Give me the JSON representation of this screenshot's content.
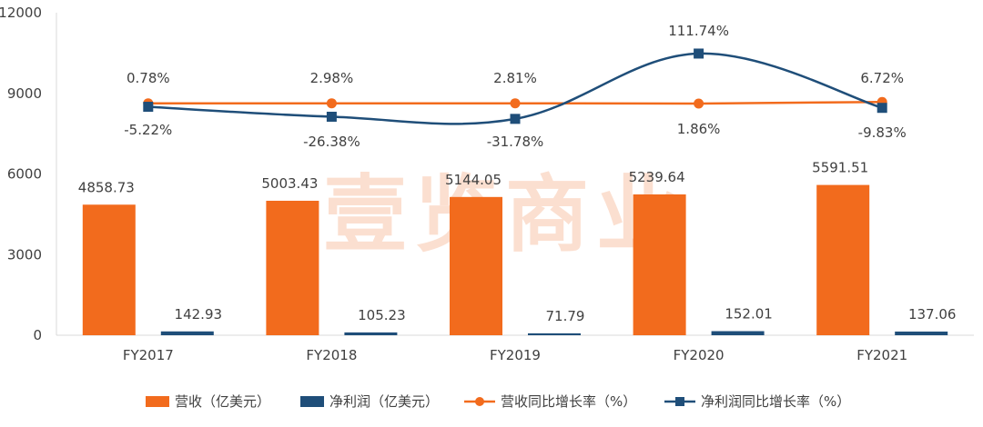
{
  "chart_data": {
    "type": "bar",
    "categories": [
      "FY2017",
      "FY2018",
      "FY2019",
      "FY2020",
      "FY2021"
    ],
    "ylim": [
      0,
      12000
    ],
    "yticks": [
      0,
      3000,
      6000,
      9000,
      12000
    ],
    "grid": false,
    "legend_position": "bottom",
    "bar_series": [
      {
        "name": "营收（亿美元）",
        "values": [
          4858.73,
          5003.43,
          5144.05,
          5239.64,
          5591.51
        ],
        "labels": [
          "4858.73",
          "5003.43",
          "5144.05",
          "5239.64",
          "5591.51"
        ],
        "color": "#F26B1D"
      },
      {
        "name": "净利润（亿美元）",
        "values": [
          142.93,
          105.23,
          71.79,
          152.01,
          137.06
        ],
        "labels": [
          "142.93",
          "105.23",
          "71.79",
          "152.01",
          "137.06"
        ],
        "color": "#1F4E79"
      }
    ],
    "line_series": [
      {
        "name": "营收同比增长率（%）",
        "values": [
          0.78,
          2.98,
          2.81,
          1.86,
          6.72
        ],
        "labels": [
          "0.78%",
          "2.98%",
          "2.81%",
          "1.86%",
          "6.72%"
        ],
        "plot_y": [
          8630,
          8630,
          8630,
          8620,
          8680
        ],
        "color": "#F26B1D",
        "smooth": false
      },
      {
        "name": "净利润同比增长率（%）",
        "values": [
          -5.22,
          -26.38,
          -31.78,
          111.74,
          -9.83
        ],
        "labels": [
          "-5.22%",
          "-26.38%",
          "-31.78%",
          "111.74%",
          "-9.83%"
        ],
        "plot_y": [
          8500,
          8130,
          8050,
          10480,
          8460
        ],
        "color": "#1F4E79",
        "smooth": true
      }
    ],
    "watermark": "壹览商业"
  }
}
